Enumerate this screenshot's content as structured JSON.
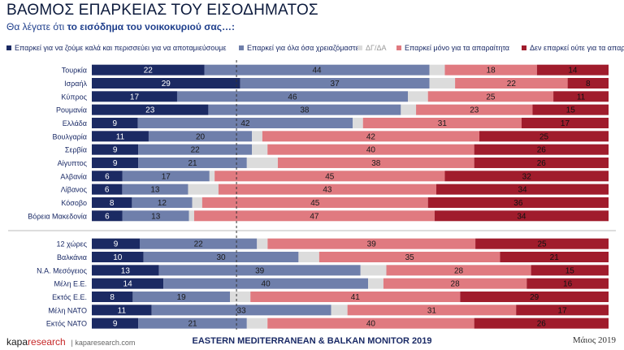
{
  "title": "ΒΑΘΜΟΣ ΕΠΑΡΚΕΙΑΣ ΤΟΥ ΕΙΣΟΔΗΜΑΤΟΣ",
  "subtitle_prefix": "Θα λέγατε ότι",
  "subtitle_highlight": "το εισόδημα του νοικοκυριού σας…:",
  "footer": {
    "logo_a": "kapa",
    "logo_b": "research",
    "site": "| kaparesearch.com",
    "center": "EASTERN MEDITERRANEAN & BALKAN MONITOR 2019",
    "date": "Μάιος 2019"
  },
  "chart_data": {
    "type": "bar",
    "orientation": "horizontal",
    "stacked": true,
    "percent_scale": true,
    "series": [
      {
        "name": "Επαρκεί για να ζούμε καλά και περισσεύει για να αποταμιεύσουμε",
        "color": "#1b2a63",
        "values": [
          22,
          29,
          17,
          23,
          9,
          11,
          9,
          9,
          6,
          6,
          8,
          6,
          9,
          10,
          13,
          14,
          8,
          11,
          9
        ]
      },
      {
        "name": "Επαρκεί για όλα όσα χρειαζόμαστε",
        "color": "#6f7fab",
        "values": [
          44,
          37,
          46,
          38,
          42,
          20,
          22,
          21,
          17,
          13,
          12,
          13,
          22,
          30,
          39,
          40,
          19,
          33,
          21
        ]
      },
      {
        "name": "ΔΓ/ΔΑ",
        "color": "#dcdcdc",
        "values": [
          3,
          5,
          4,
          3,
          2,
          2,
          3,
          6,
          1,
          6,
          2,
          1,
          2,
          4,
          5,
          3,
          4,
          3,
          4
        ]
      },
      {
        "name": "Επαρκεί μόνο για τα απαραίτητα",
        "color": "#e07a80",
        "values": [
          18,
          22,
          25,
          23,
          31,
          42,
          40,
          38,
          45,
          43,
          45,
          47,
          39,
          35,
          28,
          28,
          41,
          31,
          40
        ]
      },
      {
        "name": "Δεν επαρκεί ούτε για τα απαραίτητα",
        "color": "#a01c2c",
        "values": [
          14,
          8,
          11,
          15,
          17,
          25,
          26,
          26,
          32,
          34,
          36,
          34,
          25,
          21,
          15,
          16,
          29,
          17,
          26
        ]
      }
    ],
    "groups": [
      {
        "categories": [
          "Τουρκία",
          "Ισραήλ",
          "Κύπρος",
          "Ρουμανία",
          "Ελλάδα",
          "Βουλγαρία",
          "Σερβία",
          "Αίγυπτος",
          "Αλβανία",
          "Λίβανος",
          "Κόσοβο",
          "Βόρεια Μακεδονία"
        ]
      },
      {
        "categories": [
          "12 χώρες",
          "Βαλκάνια",
          "Ν.Α. Μεσόγειος",
          "Μέλη Ε.Ε.",
          "Εκτός Ε.Ε.",
          "Μέλη ΝΑΤΟ",
          "Εκτός ΝΑΤΟ"
        ]
      }
    ],
    "show_value_labels_for": [
      0,
      1,
      3,
      4
    ],
    "reference_line": "dashed vertical line",
    "grid": false,
    "legend_position": "top"
  }
}
